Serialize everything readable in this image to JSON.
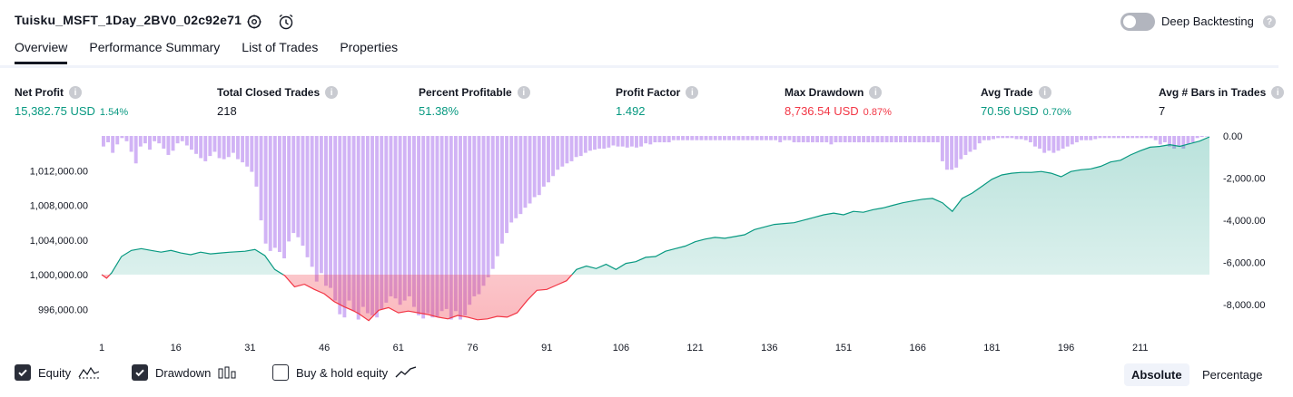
{
  "header": {
    "title": "Tuisku_MSFT_1Day_2BV0_02c92e71",
    "deep_backtesting_label": "Deep Backtesting",
    "deep_backtesting_enabled": false
  },
  "tabs": [
    {
      "label": "Overview",
      "active": true
    },
    {
      "label": "Performance Summary",
      "active": false
    },
    {
      "label": "List of Trades",
      "active": false
    },
    {
      "label": "Properties",
      "active": false
    }
  ],
  "metrics": {
    "net_profit": {
      "label": "Net Profit",
      "value": "15,382.75 USD",
      "pct": "1.54%"
    },
    "total_closed_trades": {
      "label": "Total Closed Trades",
      "value": "218"
    },
    "percent_profitable": {
      "label": "Percent Profitable",
      "value": "51.38%"
    },
    "profit_factor": {
      "label": "Profit Factor",
      "value": "1.492"
    },
    "max_drawdown": {
      "label": "Max Drawdown",
      "value": "8,736.54 USD",
      "pct": "0.87%"
    },
    "avg_trade": {
      "label": "Avg Trade",
      "value": "70.56 USD",
      "pct": "0.70%"
    },
    "avg_bars": {
      "label": "Avg # Bars in Trades",
      "value": "7"
    }
  },
  "legend": {
    "equity": {
      "label": "Equity",
      "checked": true
    },
    "drawdown": {
      "label": "Drawdown",
      "checked": true
    },
    "buy_hold": {
      "label": "Buy & hold equity",
      "checked": false
    }
  },
  "view_mode": {
    "absolute": "Absolute",
    "percentage": "Percentage",
    "selected": "Absolute"
  },
  "colors": {
    "profit": "#089981",
    "loss": "#f23645",
    "drawdown_bar": "#d1b3f5",
    "equity_fill": "#c8ebe1"
  },
  "chart_data": {
    "type": "area",
    "left_axis": {
      "ticks": [
        "1,012,000.00",
        "1,008,000.00",
        "1,004,000.00",
        "1,000,000.00",
        "996,000.00"
      ],
      "range": [
        993000,
        1016000
      ]
    },
    "right_axis": {
      "ticks": [
        "0.00",
        "-2,000.00",
        "-4,000.00",
        "-6,000.00",
        "-8,000.00"
      ],
      "range": [
        -9450,
        0
      ]
    },
    "x_ticks": [
      "1",
      "16",
      "31",
      "46",
      "61",
      "76",
      "91",
      "106",
      "121",
      "136",
      "151",
      "166",
      "181",
      "196",
      "211"
    ],
    "baseline": 1000000,
    "series": [
      {
        "name": "Equity",
        "points": [
          [
            1,
            1000000
          ],
          [
            2,
            999600
          ],
          [
            3,
            1000200
          ],
          [
            5,
            1002100
          ],
          [
            7,
            1002800
          ],
          [
            9,
            1003000
          ],
          [
            11,
            1002800
          ],
          [
            13,
            1002600
          ],
          [
            15,
            1002800
          ],
          [
            17,
            1002500
          ],
          [
            19,
            1002300
          ],
          [
            21,
            1002600
          ],
          [
            23,
            1002400
          ],
          [
            25,
            1002500
          ],
          [
            27,
            1002600
          ],
          [
            30,
            1002700
          ],
          [
            32,
            1002900
          ],
          [
            34,
            1002200
          ],
          [
            36,
            1000600
          ],
          [
            38,
            999900
          ],
          [
            40,
            998600
          ],
          [
            42,
            998900
          ],
          [
            44,
            998300
          ],
          [
            46,
            997800
          ],
          [
            48,
            996900
          ],
          [
            50,
            996300
          ],
          [
            52,
            995800
          ],
          [
            53,
            995500
          ],
          [
            55,
            994700
          ],
          [
            57,
            995900
          ],
          [
            59,
            996200
          ],
          [
            61,
            995600
          ],
          [
            63,
            995800
          ],
          [
            65,
            995600
          ],
          [
            67,
            995400
          ],
          [
            69,
            995100
          ],
          [
            71,
            994900
          ],
          [
            73,
            995300
          ],
          [
            75,
            995100
          ],
          [
            77,
            994800
          ],
          [
            79,
            994900
          ],
          [
            81,
            995200
          ],
          [
            83,
            995100
          ],
          [
            85,
            995600
          ],
          [
            87,
            997000
          ],
          [
            89,
            998200
          ],
          [
            91,
            998300
          ],
          [
            93,
            998800
          ],
          [
            95,
            999300
          ],
          [
            97,
            1000600
          ],
          [
            99,
            1001000
          ],
          [
            101,
            1000700
          ],
          [
            103,
            1001200
          ],
          [
            105,
            1000600
          ],
          [
            107,
            1001300
          ],
          [
            109,
            1001500
          ],
          [
            111,
            1002000
          ],
          [
            113,
            1002100
          ],
          [
            115,
            1002700
          ],
          [
            117,
            1003000
          ],
          [
            119,
            1003300
          ],
          [
            121,
            1003800
          ],
          [
            123,
            1004100
          ],
          [
            125,
            1004300
          ],
          [
            127,
            1004200
          ],
          [
            129,
            1004400
          ],
          [
            131,
            1004600
          ],
          [
            133,
            1005200
          ],
          [
            135,
            1005500
          ],
          [
            137,
            1005800
          ],
          [
            139,
            1005900
          ],
          [
            141,
            1006000
          ],
          [
            143,
            1006300
          ],
          [
            145,
            1006600
          ],
          [
            147,
            1006900
          ],
          [
            149,
            1007100
          ],
          [
            151,
            1006900
          ],
          [
            153,
            1007300
          ],
          [
            155,
            1007200
          ],
          [
            157,
            1007500
          ],
          [
            159,
            1007700
          ],
          [
            161,
            1008000
          ],
          [
            163,
            1008300
          ],
          [
            165,
            1008500
          ],
          [
            167,
            1008700
          ],
          [
            169,
            1008800
          ],
          [
            171,
            1008300
          ],
          [
            173,
            1007300
          ],
          [
            175,
            1008800
          ],
          [
            177,
            1009400
          ],
          [
            179,
            1010200
          ],
          [
            181,
            1011000
          ],
          [
            183,
            1011500
          ],
          [
            185,
            1011700
          ],
          [
            187,
            1011800
          ],
          [
            189,
            1011800
          ],
          [
            191,
            1011900
          ],
          [
            193,
            1011700
          ],
          [
            195,
            1011300
          ],
          [
            197,
            1011900
          ],
          [
            199,
            1012100
          ],
          [
            201,
            1012200
          ],
          [
            203,
            1012500
          ],
          [
            205,
            1013000
          ],
          [
            207,
            1013200
          ],
          [
            209,
            1013800
          ],
          [
            211,
            1014300
          ],
          [
            213,
            1014700
          ],
          [
            215,
            1014800
          ],
          [
            217,
            1015000
          ],
          [
            219,
            1014800
          ],
          [
            221,
            1015100
          ],
          [
            223,
            1015400
          ],
          [
            225,
            1015900
          ]
        ]
      },
      {
        "name": "Drawdown",
        "values": [
          -500,
          -300,
          -800,
          -400,
          -100,
          -250,
          -750,
          -1300,
          -500,
          -350,
          -650,
          -250,
          -350,
          -600,
          -900,
          -700,
          -350,
          -250,
          -450,
          -650,
          -850,
          -1050,
          -1200,
          -950,
          -750,
          -1050,
          -1100,
          -1000,
          -800,
          -1100,
          -1250,
          -1450,
          -1700,
          -2400,
          -4000,
          -5100,
          -5450,
          -5300,
          -5500,
          -5800,
          -5000,
          -4600,
          -4800,
          -5200,
          -5750,
          -6200,
          -6900,
          -6500,
          -7100,
          -7200,
          -7800,
          -8450,
          -8600,
          -7800,
          -8300,
          -8700,
          -8100,
          -8400,
          -8500,
          -8600,
          -8200,
          -7900,
          -7600,
          -7700,
          -8000,
          -7800,
          -7600,
          -8100,
          -8500,
          -8650,
          -8400,
          -8600,
          -8550,
          -8300,
          -8200,
          -8700,
          -8300,
          -8700,
          -8500,
          -8000,
          -7600,
          -7500,
          -7100,
          -6700,
          -6300,
          -5700,
          -5100,
          -4600,
          -4100,
          -3900,
          -3700,
          -3400,
          -3200,
          -2900,
          -2800,
          -2400,
          -2200,
          -1900,
          -1600,
          -1450,
          -1300,
          -1200,
          -1000,
          -950,
          -800,
          -700,
          -650,
          -600,
          -600,
          -550,
          -450,
          -500,
          -500,
          -550,
          -500,
          -550,
          -500,
          -350,
          -400,
          -300,
          -300,
          -300,
          -300,
          -200,
          -200,
          -200,
          -200,
          -200,
          -200,
          -200,
          -200,
          -200,
          -200,
          -200,
          -200,
          -200,
          -200,
          -200,
          -200,
          -200,
          -200,
          -200,
          -200,
          -200,
          -200,
          -200,
          -300,
          -200,
          -200,
          -300,
          -300,
          -300,
          -300,
          -300,
          -300,
          -300,
          -300,
          -400,
          -300,
          -300,
          -300,
          -300,
          -300,
          -300,
          -300,
          -300,
          -300,
          -300,
          -300,
          -300,
          -300,
          -300,
          -300,
          -300,
          -300,
          -300,
          -300,
          -300,
          -300,
          -300,
          -300,
          -1200,
          -1600,
          -1600,
          -1500,
          -1100,
          -900,
          -750,
          -650,
          -350,
          -200,
          -200,
          -150,
          -100,
          -100,
          -100,
          -100,
          -150,
          -150,
          -200,
          -300,
          -500,
          -600,
          -800,
          -700,
          -800,
          -700,
          -600,
          -500,
          -400,
          -300,
          -200,
          -200,
          -200,
          -150,
          -100,
          -100,
          -100,
          -100,
          -100,
          -100,
          -100,
          -100,
          -100,
          -100,
          -100,
          -100,
          -200,
          -400,
          -300,
          -500,
          -600,
          -500,
          -600,
          -400,
          -300,
          -100,
          -50,
          0
        ]
      }
    ]
  }
}
